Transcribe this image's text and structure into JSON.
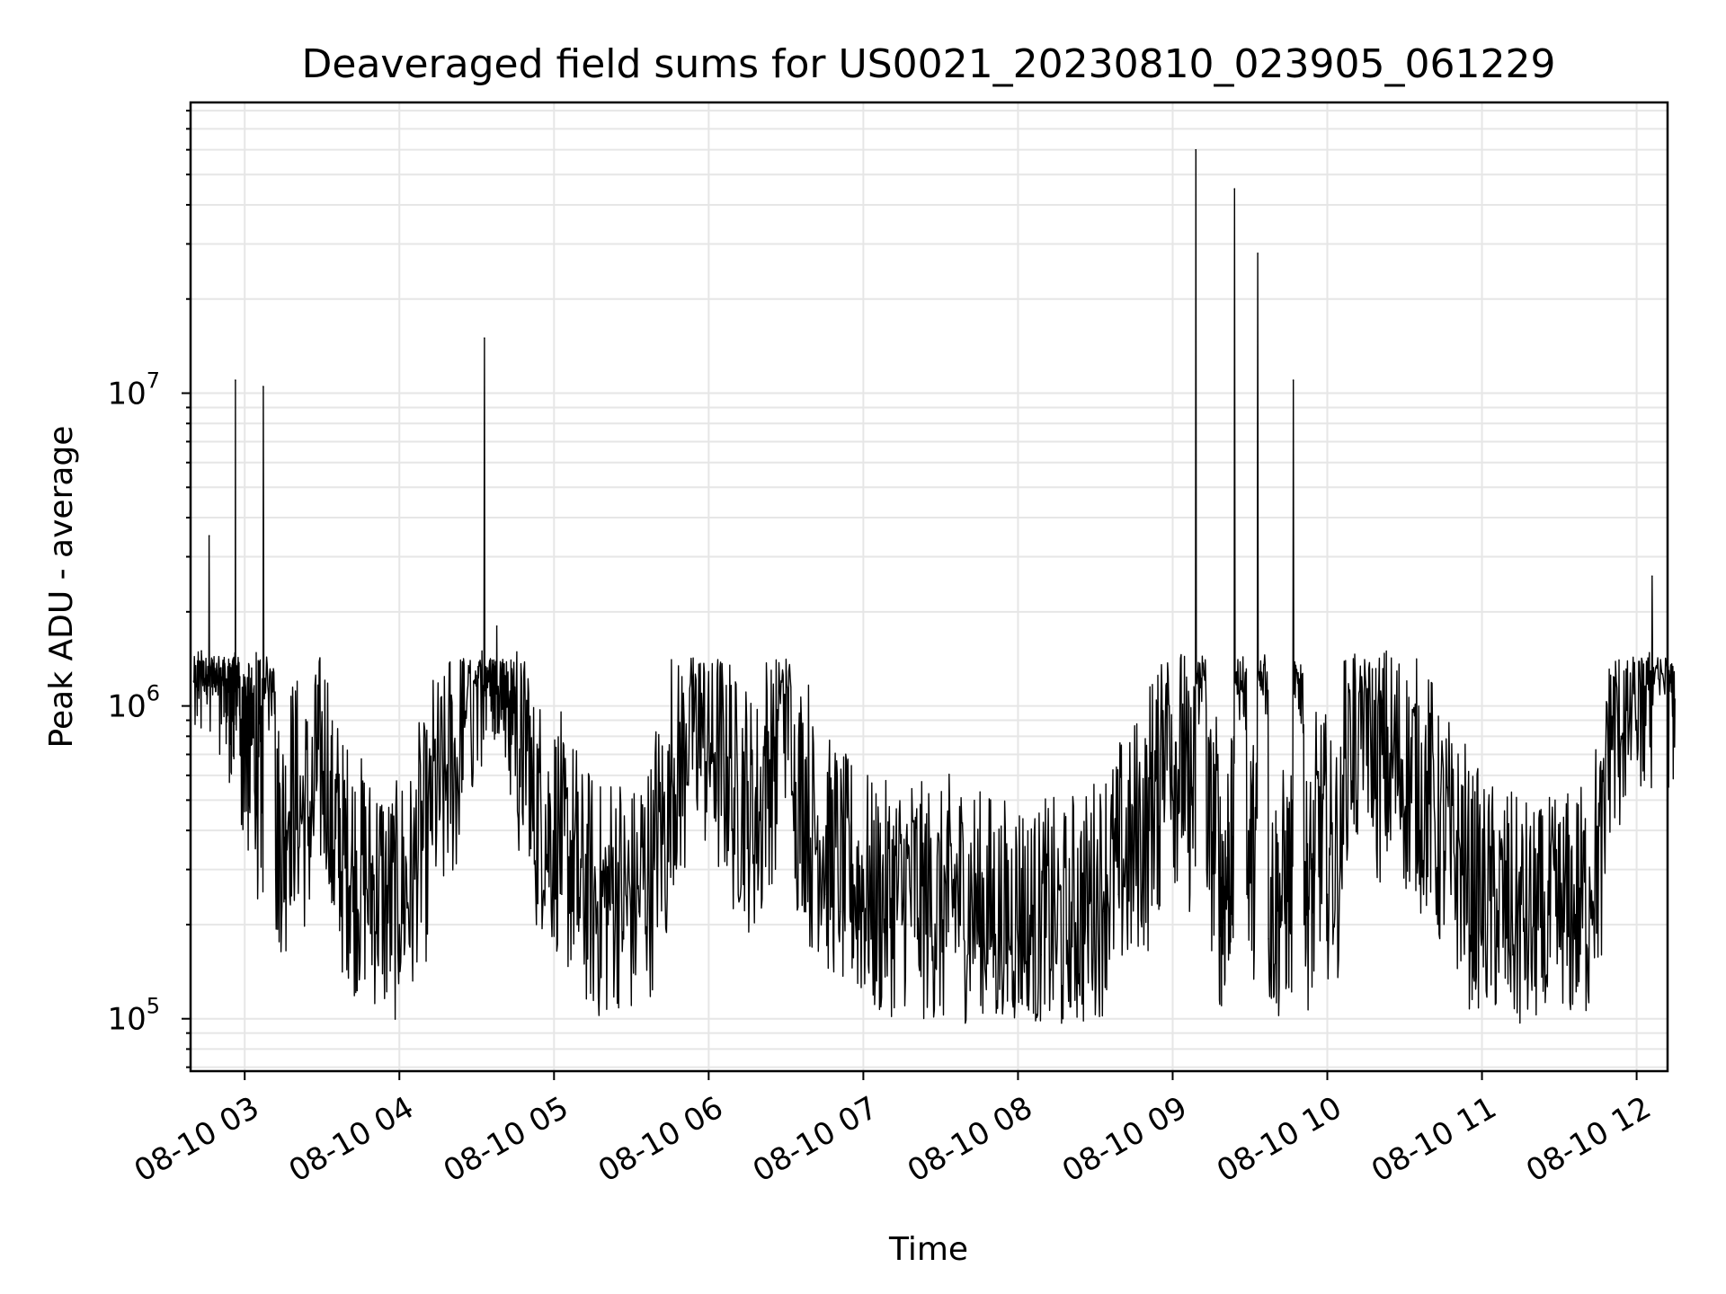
{
  "chart_data": {
    "type": "line",
    "title": "Deaveraged field sums for US0021_20230810_023905_061229",
    "xlabel": "Time",
    "ylabel": "Peak ADU - average",
    "yscale": "log",
    "ylim": [
      68000,
      85000000
    ],
    "xlim": [
      "2023-08-10 02:39",
      "2023-08-10 12:12"
    ],
    "grid": true,
    "x_tick_labels": [
      "08-10 03",
      "08-10 04",
      "08-10 05",
      "08-10 06",
      "08-10 07",
      "08-10 08",
      "08-10 09",
      "08-10 10",
      "08-10 11",
      "08-10 12"
    ],
    "y_tick_labels": [
      {
        "base": "10",
        "exp": "5",
        "value": 100000
      },
      {
        "base": "10",
        "exp": "6",
        "value": 1000000
      },
      {
        "base": "10",
        "exp": "7",
        "value": 10000000
      }
    ],
    "series": [
      {
        "color": "#000000",
        "note_points": "x in hours of 2023-08-10",
        "x": [
          2.67,
          2.72,
          2.77,
          2.82,
          2.86,
          2.9,
          2.92,
          2.94,
          2.97,
          3.02,
          3.08,
          3.12,
          3.2,
          3.27,
          3.35,
          3.45,
          3.55,
          3.62,
          3.7,
          3.8,
          3.9,
          4.0,
          4.1,
          4.2,
          4.3,
          4.4,
          4.48,
          4.55,
          4.6,
          4.63,
          4.68,
          4.75,
          4.85,
          4.95,
          5.05,
          5.15,
          5.25,
          5.35,
          5.45,
          5.55,
          5.65,
          5.75,
          5.85,
          5.95,
          6.05,
          6.15,
          6.25,
          6.35,
          6.45,
          6.55,
          6.65,
          6.75,
          6.85,
          6.95,
          7.05,
          7.15,
          7.25,
          7.35,
          7.45,
          7.55,
          7.65,
          7.75,
          7.85,
          7.95,
          8.05,
          8.15,
          8.25,
          8.35,
          8.45,
          8.55,
          8.65,
          8.75,
          8.85,
          8.92,
          9.0,
          9.08,
          9.15,
          9.22,
          9.3,
          9.35,
          9.4,
          9.48,
          9.55,
          9.62,
          9.7,
          9.78,
          9.85,
          9.92,
          10.0,
          10.1,
          10.2,
          10.3,
          10.4,
          10.5,
          10.6,
          10.7,
          10.8,
          10.9,
          11.0,
          11.1,
          11.2,
          11.3,
          11.4,
          11.5,
          11.6,
          11.7,
          11.8,
          11.9,
          12.0,
          12.1,
          12.2
        ],
        "y": [
          1200000,
          1500000,
          3500000,
          1300000,
          1400000,
          900000,
          1200000,
          11000000,
          700000,
          600000,
          450000,
          10500000,
          300000,
          400000,
          350000,
          500000,
          300000,
          250000,
          220000,
          200000,
          180000,
          200000,
          280000,
          400000,
          500000,
          900000,
          1200000,
          15000000,
          1400000,
          1800000,
          900000,
          600000,
          350000,
          300000,
          250000,
          200000,
          180000,
          200000,
          180000,
          220000,
          300000,
          500000,
          700000,
          600000,
          500000,
          400000,
          350000,
          500000,
          900000,
          400000,
          300000,
          250000,
          220000,
          200000,
          180000,
          190000,
          200000,
          180000,
          170000,
          190000,
          180000,
          170000,
          160000,
          170000,
          150000,
          160000,
          150000,
          170000,
          190000,
          220000,
          250000,
          300000,
          400000,
          700000,
          500000,
          400000,
          60000000,
          300000,
          200000,
          250000,
          45000000,
          250000,
          28000000,
          180000,
          200000,
          11000000,
          200000,
          300000,
          250000,
          600000,
          700000,
          500000,
          500000,
          450000,
          400000,
          300000,
          250000,
          200000,
          180000,
          170000,
          160000,
          150000,
          160000,
          170000,
          180000,
          250000,
          700000,
          800000,
          900000,
          2600000,
          1000000
        ]
      }
    ]
  }
}
